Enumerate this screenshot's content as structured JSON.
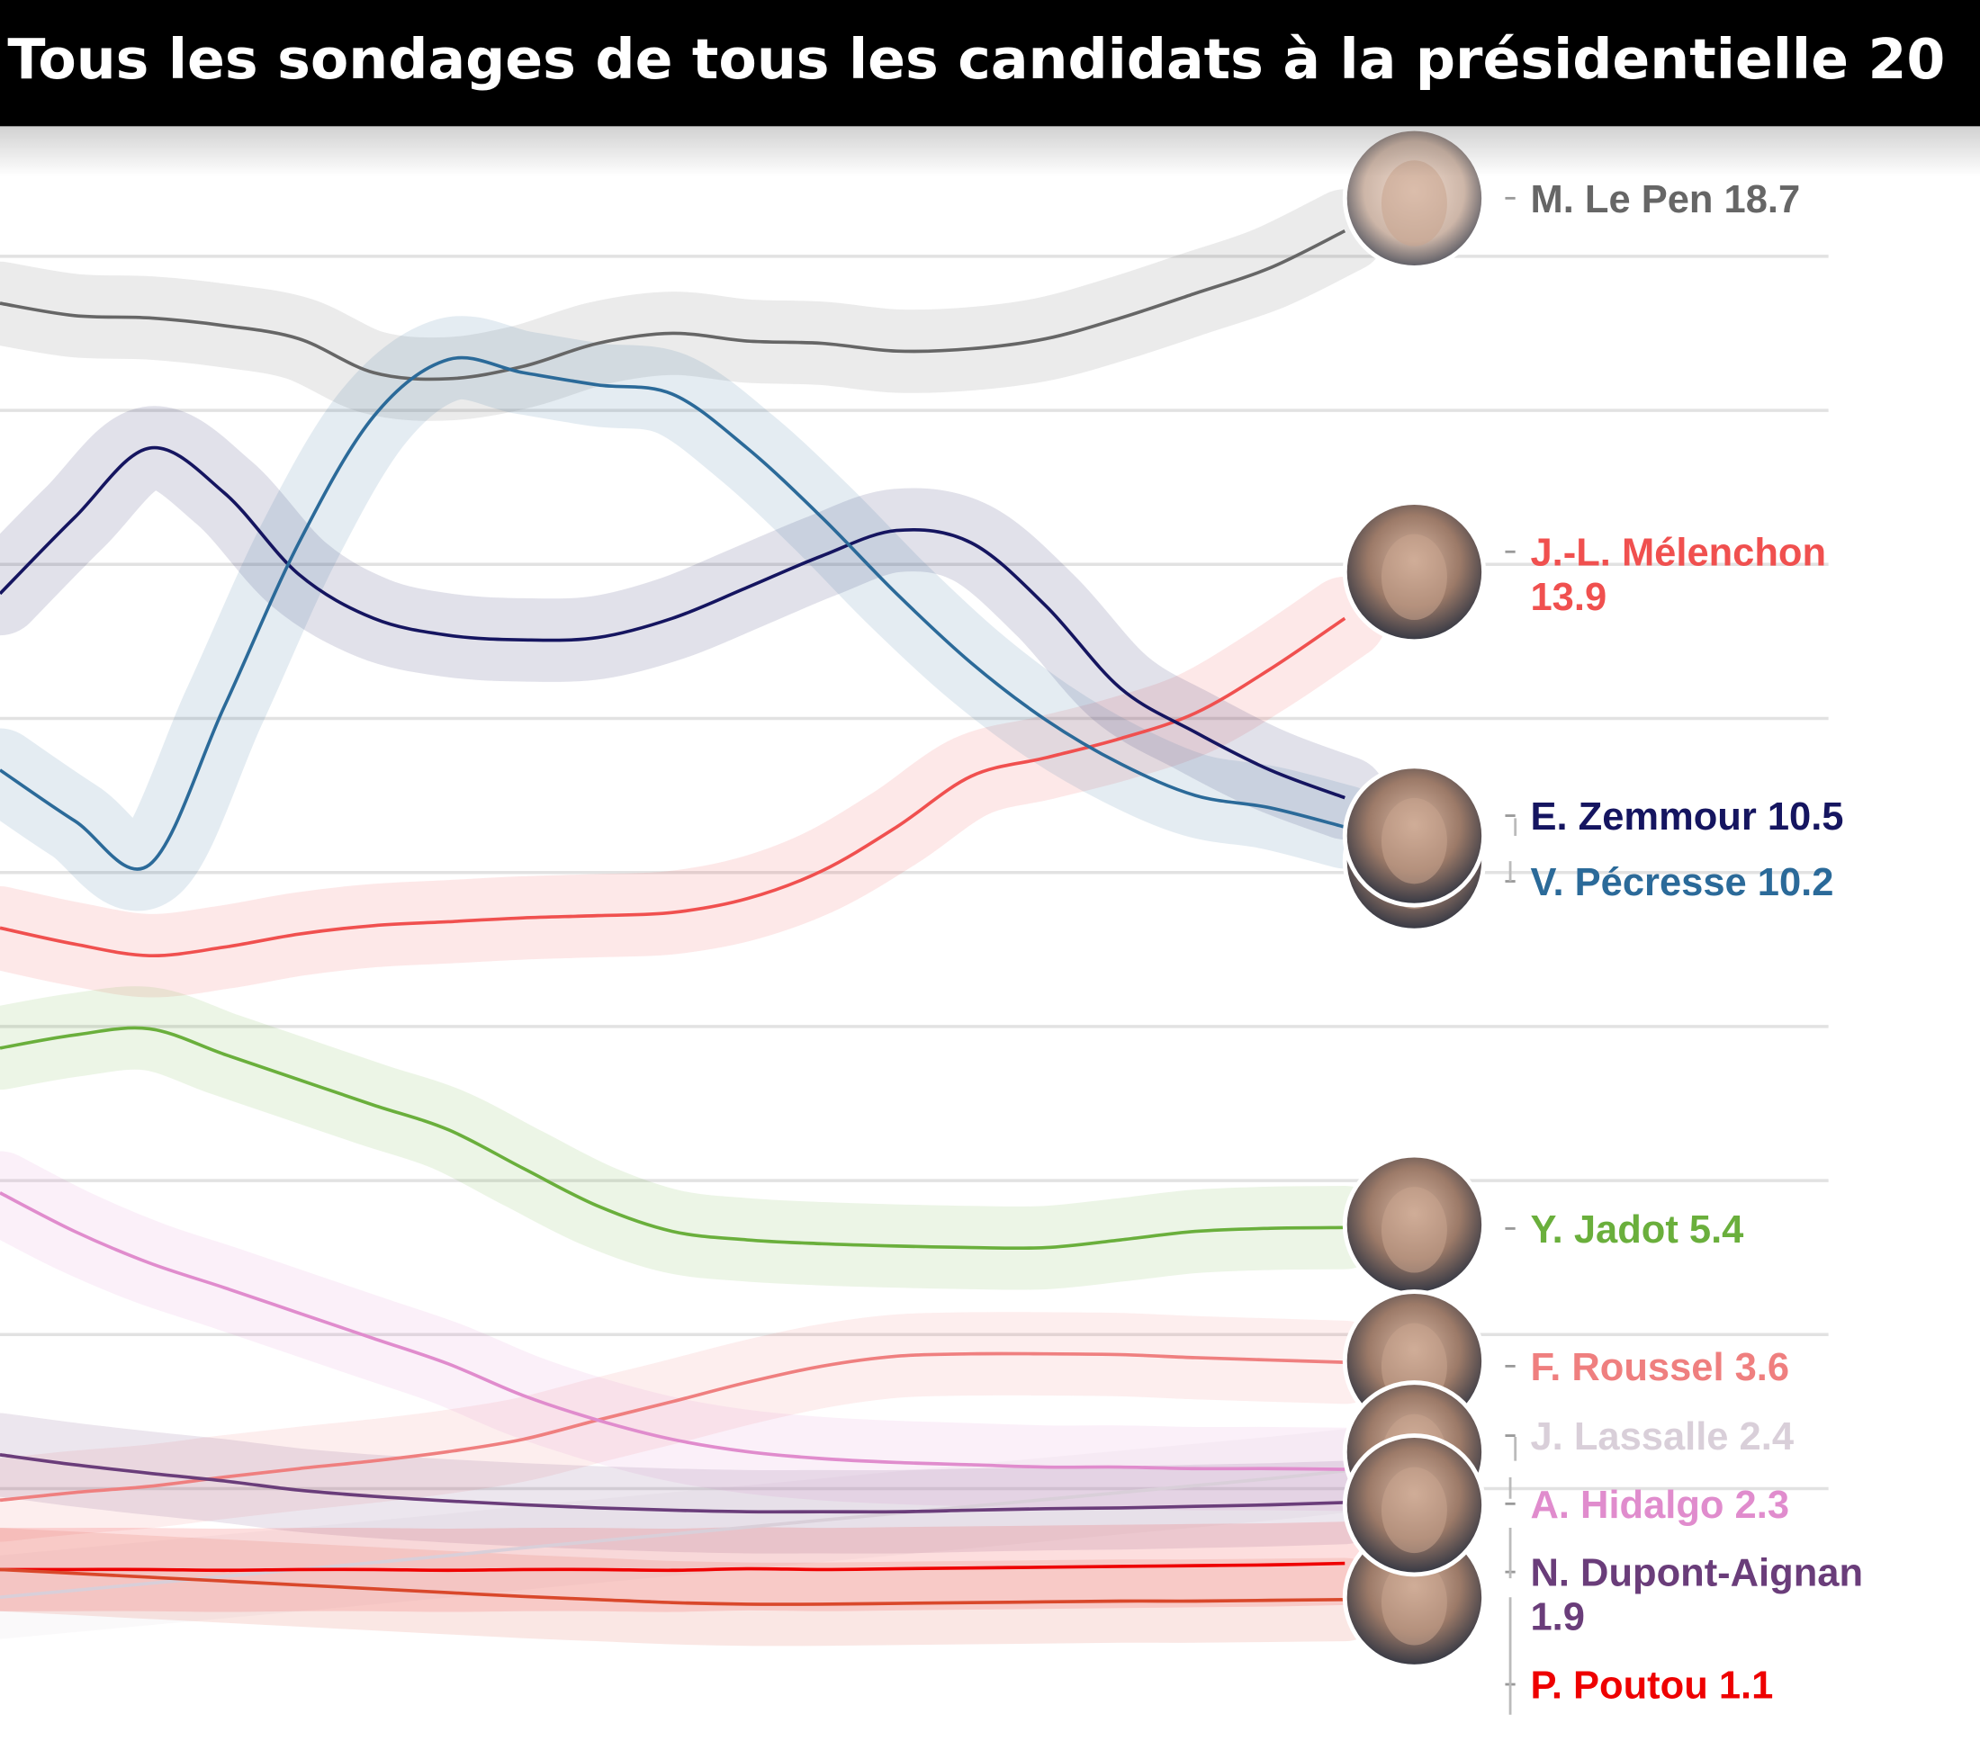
{
  "chart_data": {
    "type": "line",
    "title": "Tous les sondages de tous les candidats à la présidentielle 20",
    "xlabel": "",
    "ylabel": "",
    "ylim": [
      0,
      20
    ],
    "grid": true,
    "gridlines": [
      2,
      4,
      6,
      8,
      10,
      12,
      14,
      16,
      18
    ],
    "legend": "right (direct labels with portraits)",
    "series": [
      {
        "name": "M. Le Pen",
        "label": "M. Le Pen 18.7",
        "final": 18.7,
        "color": "#666666",
        "values": [
          17.39,
          17.23,
          17.2,
          17.1,
          16.93,
          16.49,
          16.41,
          16.57,
          16.87,
          17.0,
          16.9,
          16.87,
          16.77,
          16.8,
          16.93,
          17.2,
          17.52,
          17.85,
          18.33
        ]
      },
      {
        "name": "J.-L. Mélenchon",
        "label": "J.-L. Mélenchon 13.9",
        "label_lines": [
          "J.-L. Mélenchon",
          "13.9"
        ],
        "final": 13.9,
        "color": "#f0504f",
        "values": [
          9.28,
          9.07,
          8.92,
          9.03,
          9.2,
          9.31,
          9.36,
          9.41,
          9.44,
          9.48,
          9.66,
          10.02,
          10.59,
          11.25,
          11.49,
          11.74,
          12.07,
          12.64,
          13.3
        ]
      },
      {
        "name": "E. Zemmour",
        "label": "E. Zemmour 10.5",
        "final": 10.5,
        "color": "#151560",
        "values": [
          13.62,
          14.61,
          15.51,
          14.93,
          13.87,
          13.3,
          13.08,
          13.02,
          13.05,
          13.3,
          13.7,
          14.11,
          14.44,
          14.28,
          13.46,
          12.39,
          11.82,
          11.33,
          10.97
        ]
      },
      {
        "name": "V. Pécresse",
        "label": "V. Pécresse 10.2",
        "final": 10.2,
        "color": "#2b6a99",
        "values": [
          11.33,
          10.67,
          10.1,
          12.15,
          14.28,
          15.92,
          16.66,
          16.49,
          16.33,
          16.21,
          15.51,
          14.61,
          13.62,
          12.72,
          11.98,
          11.41,
          11.0,
          10.84,
          10.59
        ]
      },
      {
        "name": "Y. Jadot",
        "label": "Y. Jadot 5.4",
        "final": 5.4,
        "color": "#6aaf3c",
        "values": [
          7.72,
          7.89,
          7.97,
          7.64,
          7.31,
          6.98,
          6.66,
          6.16,
          5.67,
          5.34,
          5.23,
          5.18,
          5.15,
          5.13,
          5.13,
          5.23,
          5.34,
          5.38,
          5.39
        ]
      },
      {
        "name": "F. Roussel",
        "label": "F. Roussel 3.6",
        "final": 3.6,
        "color": "#ef7f7f",
        "values": [
          1.85,
          1.95,
          2.03,
          2.15,
          2.26,
          2.36,
          2.48,
          2.64,
          2.89,
          3.13,
          3.38,
          3.59,
          3.72,
          3.75,
          3.75,
          3.74,
          3.7,
          3.67,
          3.64
        ]
      },
      {
        "name": "J. Lassalle",
        "label": "J. Lassalle 2.4",
        "final": 2.4,
        "color": "#d9cfd9",
        "values": [
          0.59,
          0.68,
          0.77,
          0.86,
          0.95,
          1.04,
          1.13,
          1.23,
          1.32,
          1.41,
          1.5,
          1.59,
          1.68,
          1.77,
          1.86,
          1.95,
          2.04,
          2.13,
          2.23
        ]
      },
      {
        "name": "A. Hidalgo",
        "label": "A. Hidalgo 2.3",
        "final": 2.3,
        "color": "#e08ccd",
        "values": [
          5.84,
          5.34,
          4.93,
          4.61,
          4.28,
          3.95,
          3.62,
          3.21,
          2.89,
          2.64,
          2.48,
          2.39,
          2.34,
          2.31,
          2.28,
          2.28,
          2.26,
          2.26,
          2.25
        ]
      },
      {
        "name": "N. Dupont-Aignan",
        "label": "N. Dupont-Aignan 1.9",
        "label_lines": [
          "N. Dupont-Aignan",
          "1.9"
        ],
        "final": 1.9,
        "color": "#6a3d7a",
        "values": [
          2.44,
          2.31,
          2.2,
          2.1,
          1.98,
          1.9,
          1.84,
          1.79,
          1.75,
          1.72,
          1.7,
          1.7,
          1.7,
          1.72,
          1.74,
          1.75,
          1.77,
          1.79,
          1.82
        ]
      },
      {
        "name": "P. Poutou",
        "label": "P. Poutou 1.1",
        "final": 1.1,
        "color": "#ee0000",
        "values": [
          0.95,
          0.95,
          0.95,
          0.94,
          0.95,
          0.95,
          0.94,
          0.95,
          0.95,
          0.94,
          0.96,
          0.95,
          0.96,
          0.97,
          0.98,
          0.99,
          1.0,
          1.01,
          1.03
        ]
      },
      {
        "color": "#d9482b",
        "values": [
          0.95,
          0.9,
          0.85,
          0.8,
          0.75,
          0.7,
          0.65,
          0.6,
          0.56,
          0.52,
          0.5,
          0.5,
          0.51,
          0.52,
          0.53,
          0.54,
          0.54,
          0.55,
          0.56
        ]
      }
    ]
  }
}
